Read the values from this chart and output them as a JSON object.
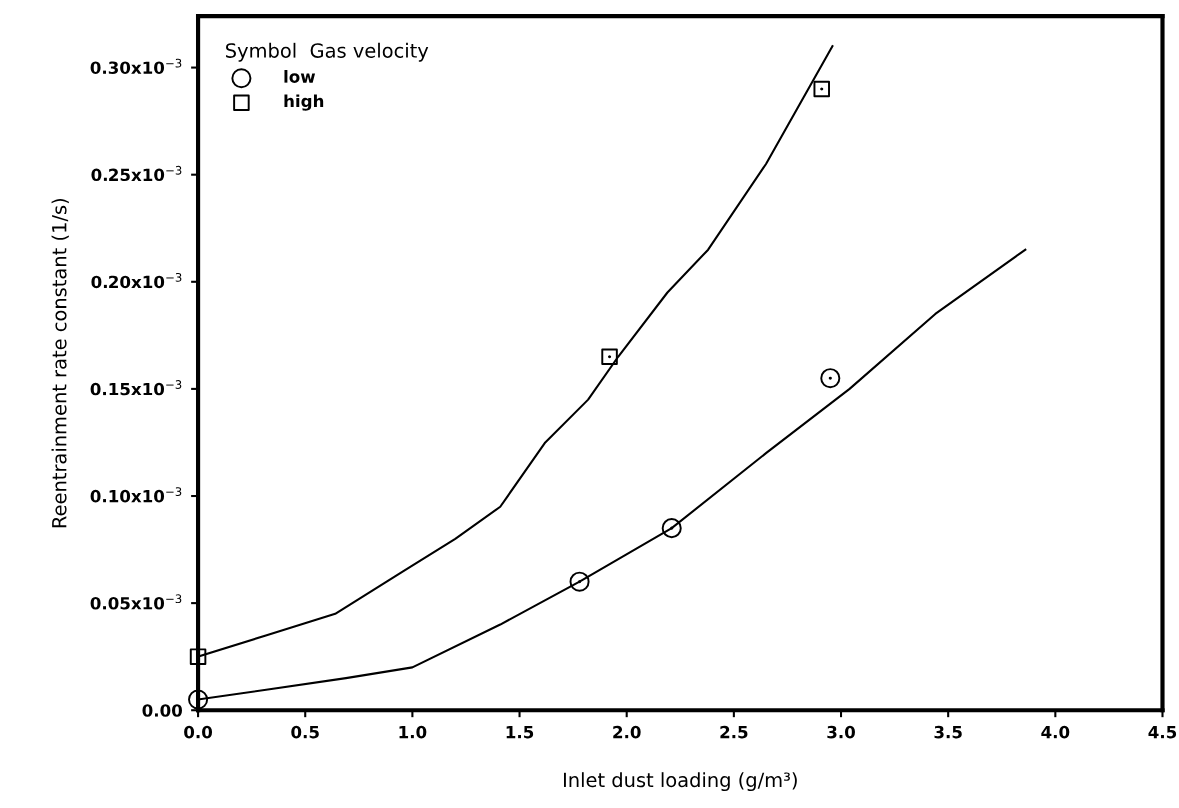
{
  "chart_data": {
    "type": "scatter",
    "xlabel": "Inlet dust loading (g/m³)",
    "ylabel": "Reentrainment rate constant (1/s)",
    "legend_title": "Symbol  Gas velocity",
    "legend": "top left",
    "grid": false,
    "xlim": [
      0,
      4.5
    ],
    "xticks": [
      {
        "value": 0,
        "label": "0.0"
      },
      0.5,
      {
        "value": 1,
        "label": "1.0"
      },
      1.5,
      {
        "value": 2,
        "label": "2.0"
      },
      2.5,
      {
        "value": 3,
        "label": "3.0"
      },
      3.5,
      {
        "value": 4,
        "label": "4.0"
      },
      4.5
    ],
    "ylim": [
      0,
      0.000324
    ],
    "yticks": [
      {
        "value": 0,
        "label": "0.00"
      },
      {
        "value": 5e-05,
        "label": "0.05x10$^{−3}$"
      },
      {
        "value": 0.0001,
        "label": "0.10x10$^{−3}$"
      },
      {
        "value": 0.00015,
        "label": "0.15x10$^{−3}$"
      },
      {
        "value": 0.0002,
        "label": "0.20x10$^{−3}$"
      },
      {
        "value": 0.00025,
        "label": "0.25x10$^{−3}$"
      },
      {
        "value": 0.0003,
        "label": "0.30x10$^{−3}$"
      }
    ],
    "series": [
      {
        "name": "low",
        "marker": "circle",
        "color": "#000000",
        "x": [
          0.0,
          1.78,
          2.21,
          2.95
        ],
        "values": [
          5e-06,
          6e-05,
          8.5e-05,
          0.000155
        ]
      },
      {
        "name": "high",
        "marker": "square",
        "color": "#000000",
        "x": [
          0.0,
          1.92,
          2.91
        ],
        "values": [
          2.5e-05,
          0.000165,
          0.00029
        ]
      },
      {
        "type": "line",
        "marker": "none",
        "line_style": "solid",
        "color": "#000000",
        "x": [
          0.0,
          0.35,
          0.69,
          1.0,
          1.41,
          1.78,
          2.21,
          2.65,
          3.04,
          3.44,
          3.86
        ],
        "values": [
          5e-06,
          1e-05,
          1.5e-05,
          2e-05,
          4e-05,
          6e-05,
          8.5e-05,
          0.00012,
          0.00015,
          0.000185,
          0.000215
        ]
      },
      {
        "type": "line",
        "marker": "none",
        "line_style": "solid",
        "color": "#000000",
        "x": [
          0.0,
          0.32,
          0.64,
          0.96,
          1.2,
          1.41,
          1.62,
          1.82,
          1.96,
          2.19,
          2.38,
          2.65,
          2.96
        ],
        "values": [
          2.5e-05,
          3.5e-05,
          4.5e-05,
          6.5e-05,
          8e-05,
          9.5e-05,
          0.000125,
          0.000145,
          0.000165,
          0.000195,
          0.000215,
          0.000255,
          0.00031
        ]
      }
    ]
  }
}
